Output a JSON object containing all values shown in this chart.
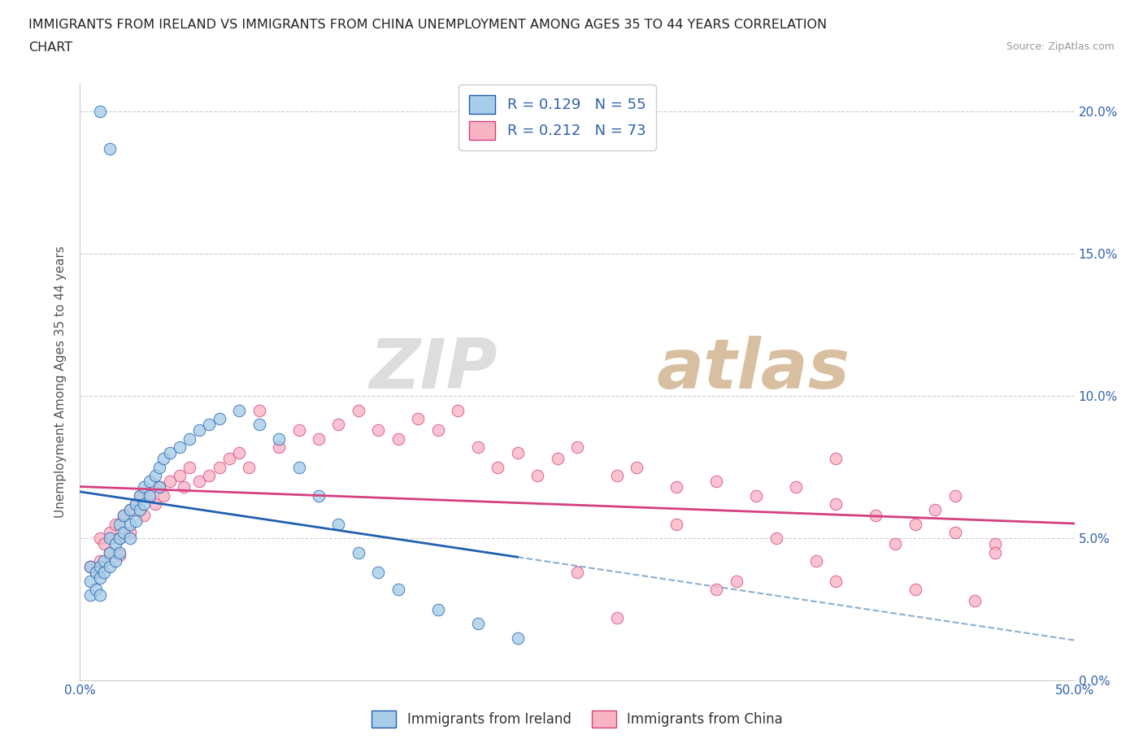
{
  "title_line1": "IMMIGRANTS FROM IRELAND VS IMMIGRANTS FROM CHINA UNEMPLOYMENT AMONG AGES 35 TO 44 YEARS CORRELATION",
  "title_line2": "CHART",
  "source": "Source: ZipAtlas.com",
  "ylabel": "Unemployment Among Ages 35 to 44 years",
  "legend_label1": "Immigrants from Ireland",
  "legend_label2": "Immigrants from China",
  "R1": 0.129,
  "N1": 55,
  "R2": 0.212,
  "N2": 73,
  "xlim": [
    0.0,
    0.5
  ],
  "ylim": [
    0.0,
    0.21
  ],
  "color_ireland": "#a8cde8",
  "color_china": "#f9b4c3",
  "trendline_color_ireland": "#2060b0",
  "trendline_color_china": "#d44080",
  "trendline_dash_color": "#8ab0d0",
  "ireland_x": [
    0.01,
    0.015,
    0.005,
    0.005,
    0.005,
    0.008,
    0.008,
    0.01,
    0.01,
    0.01,
    0.012,
    0.012,
    0.015,
    0.015,
    0.015,
    0.018,
    0.018,
    0.02,
    0.02,
    0.02,
    0.022,
    0.022,
    0.025,
    0.025,
    0.025,
    0.028,
    0.028,
    0.03,
    0.03,
    0.032,
    0.032,
    0.035,
    0.035,
    0.038,
    0.04,
    0.04,
    0.042,
    0.045,
    0.05,
    0.055,
    0.06,
    0.065,
    0.07,
    0.08,
    0.09,
    0.1,
    0.11,
    0.12,
    0.13,
    0.14,
    0.15,
    0.16,
    0.18,
    0.2,
    0.22
  ],
  "ireland_y": [
    0.2,
    0.187,
    0.04,
    0.035,
    0.03,
    0.038,
    0.032,
    0.04,
    0.036,
    0.03,
    0.042,
    0.038,
    0.05,
    0.045,
    0.04,
    0.048,
    0.042,
    0.055,
    0.05,
    0.045,
    0.058,
    0.052,
    0.06,
    0.055,
    0.05,
    0.062,
    0.056,
    0.065,
    0.06,
    0.068,
    0.062,
    0.07,
    0.065,
    0.072,
    0.075,
    0.068,
    0.078,
    0.08,
    0.082,
    0.085,
    0.088,
    0.09,
    0.092,
    0.095,
    0.09,
    0.085,
    0.075,
    0.065,
    0.055,
    0.045,
    0.038,
    0.032,
    0.025,
    0.02,
    0.015
  ],
  "china_x": [
    0.005,
    0.008,
    0.01,
    0.01,
    0.012,
    0.015,
    0.015,
    0.018,
    0.02,
    0.02,
    0.022,
    0.025,
    0.025,
    0.028,
    0.03,
    0.032,
    0.035,
    0.038,
    0.04,
    0.042,
    0.045,
    0.05,
    0.052,
    0.055,
    0.06,
    0.065,
    0.07,
    0.075,
    0.08,
    0.085,
    0.09,
    0.1,
    0.11,
    0.12,
    0.13,
    0.14,
    0.15,
    0.16,
    0.17,
    0.18,
    0.19,
    0.2,
    0.21,
    0.22,
    0.23,
    0.24,
    0.25,
    0.27,
    0.28,
    0.3,
    0.32,
    0.34,
    0.36,
    0.38,
    0.4,
    0.42,
    0.44,
    0.46,
    0.3,
    0.35,
    0.38,
    0.43,
    0.46,
    0.25,
    0.32,
    0.37,
    0.42,
    0.45,
    0.27,
    0.33,
    0.41,
    0.44,
    0.38
  ],
  "china_y": [
    0.04,
    0.038,
    0.05,
    0.042,
    0.048,
    0.052,
    0.045,
    0.055,
    0.05,
    0.044,
    0.058,
    0.06,
    0.052,
    0.062,
    0.065,
    0.058,
    0.065,
    0.062,
    0.068,
    0.065,
    0.07,
    0.072,
    0.068,
    0.075,
    0.07,
    0.072,
    0.075,
    0.078,
    0.08,
    0.075,
    0.095,
    0.082,
    0.088,
    0.085,
    0.09,
    0.095,
    0.088,
    0.085,
    0.092,
    0.088,
    0.095,
    0.082,
    0.075,
    0.08,
    0.072,
    0.078,
    0.082,
    0.072,
    0.075,
    0.068,
    0.07,
    0.065,
    0.068,
    0.062,
    0.058,
    0.055,
    0.052,
    0.048,
    0.055,
    0.05,
    0.078,
    0.06,
    0.045,
    0.038,
    0.032,
    0.042,
    0.032,
    0.028,
    0.022,
    0.035,
    0.048,
    0.065,
    0.035
  ]
}
